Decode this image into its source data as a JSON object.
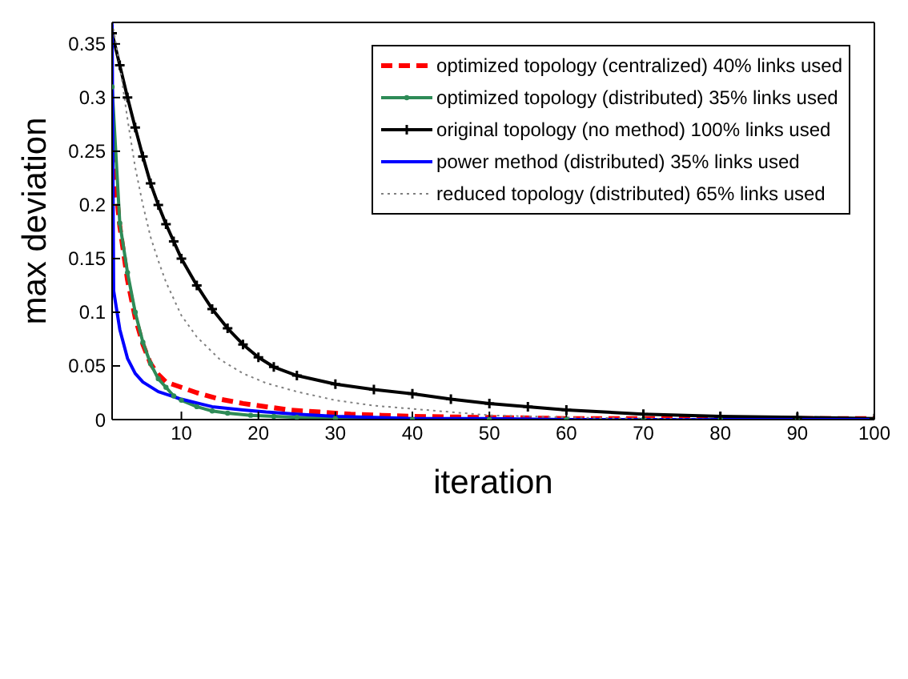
{
  "chart_data": {
    "type": "line",
    "xlabel": "iteration",
    "ylabel": "max deviation",
    "xlim": [
      1,
      100
    ],
    "ylim": [
      0,
      0.37
    ],
    "xticks": [
      10,
      20,
      30,
      40,
      50,
      60,
      70,
      80,
      90,
      100
    ],
    "yticks": [
      0,
      0.05,
      0.1,
      0.15,
      0.2,
      0.25,
      0.3,
      0.35
    ],
    "legend": "top right",
    "series": [
      {
        "name": "optimized topology (centralized) 40% links used",
        "color": "#ff0000",
        "line_style": "dashed",
        "marker": "none",
        "x": [
          1,
          2,
          3,
          4,
          5,
          6,
          7,
          8,
          10,
          12,
          15,
          18,
          21,
          24,
          28,
          32,
          36,
          40,
          50,
          60,
          70,
          80,
          90,
          100
        ],
        "values": [
          0.25,
          0.18,
          0.13,
          0.095,
          0.07,
          0.052,
          0.042,
          0.035,
          0.03,
          0.025,
          0.019,
          0.015,
          0.012,
          0.009,
          0.007,
          0.005,
          0.004,
          0.003,
          0.002,
          0.001,
          0.001,
          0.001,
          0.001,
          0.001
        ]
      },
      {
        "name": "optimized topology (distributed) 35% links used",
        "color": "#2e8b57",
        "line_style": "solid",
        "marker": "circle",
        "x": [
          1,
          2,
          3,
          4,
          5,
          6,
          7,
          8,
          9,
          10,
          12,
          14,
          16,
          19,
          22,
          25,
          30,
          40,
          50,
          60,
          70,
          80,
          90,
          100
        ],
        "values": [
          0.31,
          0.183,
          0.137,
          0.1,
          0.072,
          0.052,
          0.038,
          0.03,
          0.022,
          0.018,
          0.012,
          0.008,
          0.006,
          0.004,
          0.003,
          0.002,
          0.001,
          0,
          0,
          0,
          0,
          0,
          0,
          0
        ]
      },
      {
        "name": "original topology (no method) 100% links used",
        "color": "#000000",
        "line_style": "solid",
        "marker": "cross",
        "x": [
          1,
          2,
          3,
          4,
          5,
          6,
          7,
          8,
          9,
          10,
          12,
          14,
          16,
          18,
          20,
          22,
          25,
          30,
          35,
          40,
          45,
          50,
          55,
          60,
          70,
          80,
          90,
          100
        ],
        "values": [
          0.36,
          0.33,
          0.3,
          0.272,
          0.245,
          0.22,
          0.2,
          0.182,
          0.166,
          0.15,
          0.125,
          0.103,
          0.085,
          0.07,
          0.058,
          0.049,
          0.041,
          0.033,
          0.028,
          0.024,
          0.019,
          0.015,
          0.012,
          0.009,
          0.005,
          0.003,
          0.002,
          0.001
        ]
      },
      {
        "name": "power method (distributed) 35% links used",
        "color": "#0000ff",
        "line_style": "solid",
        "marker": "none",
        "x": [
          1,
          1.2,
          2,
          3,
          4,
          5,
          7,
          10,
          14,
          18,
          21,
          25,
          30,
          35,
          40,
          50,
          60,
          70,
          80,
          90,
          100
        ],
        "values": [
          0.37,
          0.12,
          0.084,
          0.057,
          0.043,
          0.035,
          0.026,
          0.019,
          0.012,
          0.009,
          0.007,
          0.005,
          0.003,
          0.002,
          0.001,
          0.001,
          0,
          0,
          0,
          0,
          0
        ]
      },
      {
        "name": "reduced topology (distributed) 65% links used",
        "color": "#808080",
        "line_style": "dotted",
        "marker": "none",
        "x": [
          1,
          2,
          3,
          4,
          5,
          6,
          7,
          8,
          10,
          12,
          15,
          18,
          21,
          25,
          30,
          35,
          40,
          45,
          50,
          60,
          70,
          80,
          90,
          100
        ],
        "values": [
          0.37,
          0.33,
          0.28,
          0.235,
          0.2,
          0.17,
          0.148,
          0.128,
          0.097,
          0.077,
          0.056,
          0.043,
          0.034,
          0.026,
          0.018,
          0.013,
          0.01,
          0.007,
          0.004,
          0.002,
          0.001,
          0,
          0,
          0
        ]
      }
    ]
  }
}
